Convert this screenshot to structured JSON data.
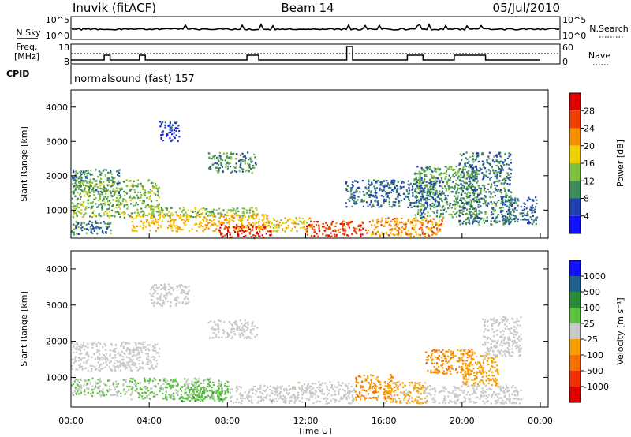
{
  "header": {
    "station": "Inuvik (fitACF)",
    "beam": "Beam 14",
    "date": "05/Jul/2010"
  },
  "top_panels": {
    "nsky_label": "N.Sky",
    "nsky_ticks": [
      "10^5",
      "10^0"
    ],
    "nsearch_label": "N.Search",
    "nsearch_ticks": [
      "10^5",
      "10^0"
    ],
    "freq_label_line1": "Freq.",
    "freq_label_line2": "[MHz]",
    "freq_ticks": [
      "18",
      "8"
    ],
    "nave_label": "Nave",
    "nave_ticks": [
      "60",
      "0"
    ],
    "cpid_label": "CPID",
    "cpid_value": "normalsound (fast) 157"
  },
  "chart_data": [
    {
      "type": "heatmap",
      "parameter": "Power",
      "ylabel": "Slant Range [km]",
      "ylim": [
        180,
        4500
      ],
      "yticks": [
        "1000",
        "2000",
        "3000",
        "4000"
      ],
      "colorbar_label": "Power [dB]",
      "colorbar_ticks": [
        "4",
        "8",
        "12",
        "16",
        "20",
        "24",
        "28"
      ],
      "colorbar_colors": [
        "#1010ff",
        "#2040b0",
        "#3c8c5a",
        "#80c040",
        "#f0d000",
        "#f59000",
        "#f04000",
        "#e00000"
      ],
      "clim": [
        0,
        32
      ],
      "regions": [
        {
          "t0": 0.0,
          "t1": 2.5,
          "r0": 1500,
          "r1": 2200,
          "level": 10
        },
        {
          "t0": 0.0,
          "t1": 4.5,
          "r0": 1100,
          "r1": 1900,
          "level": 13
        },
        {
          "t0": 0.0,
          "t1": 9.5,
          "r0": 800,
          "r1": 1100,
          "level": 14
        },
        {
          "t0": 0.0,
          "t1": 2.0,
          "r0": 300,
          "r1": 700,
          "level": 9
        },
        {
          "t0": 3.0,
          "t1": 10.0,
          "r0": 400,
          "r1": 900,
          "level": 20
        },
        {
          "t0": 7.5,
          "t1": 10.2,
          "r0": 200,
          "r1": 600,
          "level": 29
        },
        {
          "t0": 10.0,
          "t1": 12.2,
          "r0": 400,
          "r1": 800,
          "level": 18
        },
        {
          "t0": 12.0,
          "t1": 15.2,
          "r0": 250,
          "r1": 700,
          "level": 27
        },
        {
          "t0": 15.2,
          "t1": 19.0,
          "r0": 250,
          "r1": 800,
          "level": 22
        },
        {
          "t0": 17.5,
          "t1": 20.8,
          "r0": 800,
          "r1": 2300,
          "level": 11
        },
        {
          "t0": 19.8,
          "t1": 22.5,
          "r0": 600,
          "r1": 2700,
          "level": 9
        },
        {
          "t0": 4.5,
          "t1": 5.5,
          "r0": 3000,
          "r1": 3600,
          "level": 5
        },
        {
          "t0": 7.0,
          "t1": 9.5,
          "r0": 2100,
          "r1": 2700,
          "level": 10
        },
        {
          "t0": 14.0,
          "t1": 19.0,
          "r0": 1100,
          "r1": 1900,
          "level": 8
        },
        {
          "t0": 22.0,
          "t1": 23.8,
          "r0": 600,
          "r1": 1400,
          "level": 8
        }
      ]
    },
    {
      "type": "heatmap",
      "parameter": "Velocity",
      "ylabel": "Slant Range [km]",
      "ylim": [
        180,
        4500
      ],
      "yticks": [
        "1000",
        "2000",
        "3000",
        "4000"
      ],
      "colorbar_label": "Velocity [m s⁻¹]",
      "colorbar_ticks": [
        "1000",
        "500",
        "100",
        "25",
        "-25",
        "-100",
        "-500",
        "-1000"
      ],
      "colorbar_colors": [
        "#1010ff",
        "#206090",
        "#2a8c3a",
        "#5cc040",
        "#c8c8c8",
        "#f5a000",
        "#f57000",
        "#f03000",
        "#e00000"
      ],
      "clim": [
        -1200,
        1200
      ],
      "regions": [
        {
          "t0": 0.0,
          "t1": 4.5,
          "r0": 1200,
          "r1": 2000,
          "level": 0
        },
        {
          "t0": 0.0,
          "t1": 3.0,
          "r0": 500,
          "r1": 1000,
          "level": 100
        },
        {
          "t0": 3.0,
          "t1": 8.0,
          "r0": 400,
          "r1": 1000,
          "level": 180
        },
        {
          "t0": 5.5,
          "t1": 8.0,
          "r0": 350,
          "r1": 800,
          "level": 300
        },
        {
          "t0": 8.0,
          "t1": 11.5,
          "r0": 300,
          "r1": 800,
          "level": 10
        },
        {
          "t0": 7.0,
          "t1": 9.5,
          "r0": 2100,
          "r1": 2600,
          "level": 0
        },
        {
          "t0": 11.5,
          "t1": 14.5,
          "r0": 300,
          "r1": 900,
          "level": 0
        },
        {
          "t0": 14.5,
          "t1": 16.5,
          "r0": 400,
          "r1": 1100,
          "level": -400
        },
        {
          "t0": 16.0,
          "t1": 18.2,
          "r0": 300,
          "r1": 900,
          "level": -200
        },
        {
          "t0": 18.0,
          "t1": 20.5,
          "r0": 1100,
          "r1": 1800,
          "level": -400
        },
        {
          "t0": 20.0,
          "t1": 21.8,
          "r0": 800,
          "r1": 1700,
          "level": -250
        },
        {
          "t0": 18.0,
          "t1": 23.0,
          "r0": 300,
          "r1": 800,
          "level": 0
        },
        {
          "t0": 21.0,
          "t1": 23.0,
          "r0": 1600,
          "r1": 2700,
          "level": 0
        },
        {
          "t0": 4.0,
          "t1": 6.0,
          "r0": 3000,
          "r1": 3600,
          "level": 0
        }
      ]
    }
  ],
  "xaxis": {
    "label": "Time UT",
    "ticks": [
      "00:00",
      "04:00",
      "08:00",
      "12:00",
      "16:00",
      "20:00",
      "00:00"
    ]
  }
}
